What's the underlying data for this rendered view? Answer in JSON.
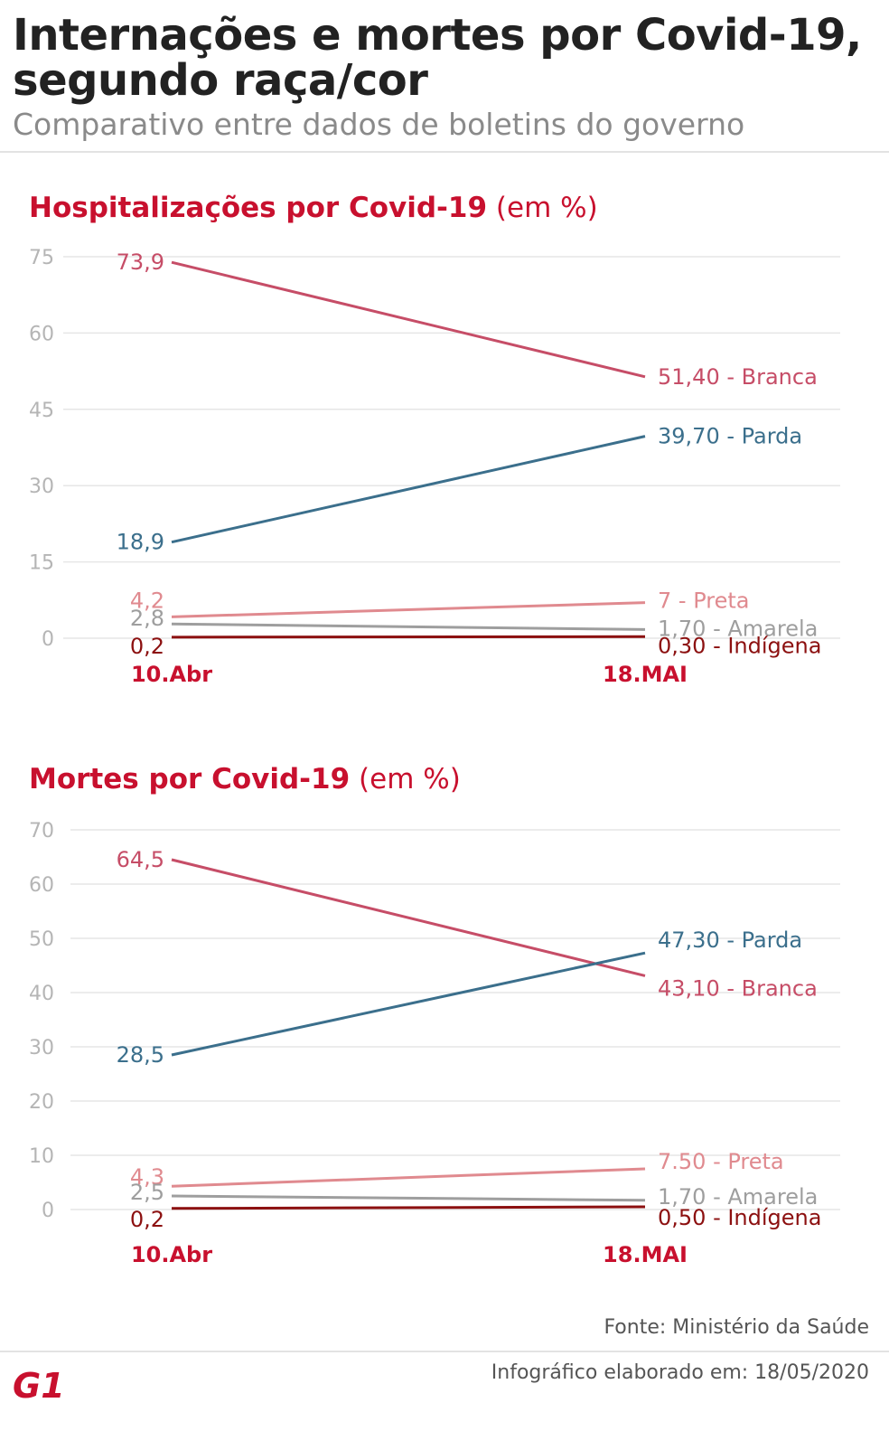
{
  "header": {
    "title": "Internações e mortes por Covid-19, segundo raça/cor",
    "subtitle": "Comparativo entre dados de boletins do governo"
  },
  "colors": {
    "Branca": "#c64d67",
    "Parda": "#3b6f8c",
    "Preta": "#e08a8f",
    "Amarela": "#9e9e9e",
    "Indigena": "#8c1010",
    "axis_label": "#c8102e",
    "grid": "#e6e6e6",
    "tick": "#b5b5b5"
  },
  "chart_data": [
    {
      "type": "line",
      "title": "Hospitalizações por Covid-19",
      "unit": "(em %)",
      "categories": [
        "10.Abr",
        "18.MAI"
      ],
      "yticks": [
        0,
        15,
        30,
        45,
        60,
        75
      ],
      "ytick_labels": [
        "0",
        "15",
        "30",
        "45",
        "60",
        "75"
      ],
      "ylim": [
        0,
        75
      ],
      "series": [
        {
          "name": "Branca",
          "values": [
            73.9,
            51.4
          ],
          "start_label": "73,9",
          "end_label": "51,40 - Branca"
        },
        {
          "name": "Parda",
          "values": [
            18.9,
            39.7
          ],
          "start_label": "18,9",
          "end_label": "39,70 - Parda"
        },
        {
          "name": "Preta",
          "values": [
            4.2,
            7.0
          ],
          "start_label": "4,2",
          "end_label": "7 - Preta"
        },
        {
          "name": "Amarela",
          "values": [
            2.8,
            1.7
          ],
          "start_label": "2,8",
          "end_label": "1,70 - Amarela"
        },
        {
          "name": "Indigena",
          "values": [
            0.2,
            0.3
          ],
          "start_label": "0,2",
          "end_label": "0,30 - Indígena"
        }
      ]
    },
    {
      "type": "line",
      "title": "Mortes por Covid-19",
      "unit": "(em %)",
      "categories": [
        "10.Abr",
        "18.MAI"
      ],
      "yticks": [
        0,
        10,
        20,
        30,
        40,
        50,
        60,
        70
      ],
      "ytick_labels": [
        "0",
        "10",
        "20",
        "30",
        "40",
        "50",
        "60",
        "70"
      ],
      "ylim": [
        0,
        70
      ],
      "series": [
        {
          "name": "Branca",
          "values": [
            64.5,
            43.1
          ],
          "start_label": "64,5",
          "end_label": "43,10 - Branca"
        },
        {
          "name": "Parda",
          "values": [
            28.5,
            47.3
          ],
          "start_label": "28,5",
          "end_label": "47,30 - Parda"
        },
        {
          "name": "Preta",
          "values": [
            4.3,
            7.5
          ],
          "start_label": "4,3",
          "end_label": "7.50 - Preta"
        },
        {
          "name": "Amarela",
          "values": [
            2.5,
            1.7
          ],
          "start_label": "2,5",
          "end_label": "1,70 - Amarela"
        },
        {
          "name": "Indigena",
          "values": [
            0.2,
            0.5
          ],
          "start_label": "0,2",
          "end_label": "0,50 - Indígena"
        }
      ]
    }
  ],
  "footer": {
    "source": "Fonte: Ministério da Saúde",
    "credit": "Infográfico elaborado em: 18/05/2020",
    "logo_text": "G1"
  }
}
